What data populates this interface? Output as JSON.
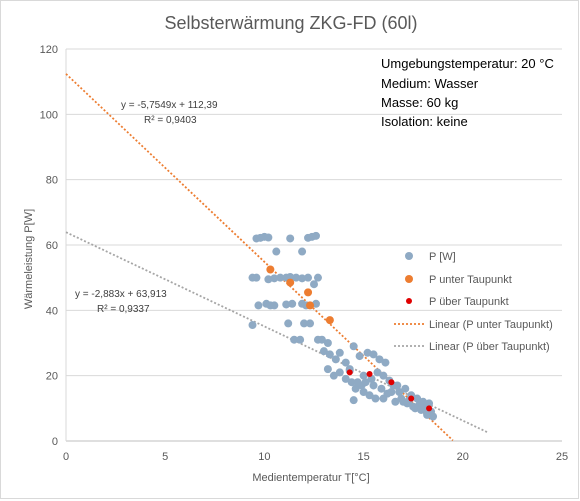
{
  "chart_data": {
    "type": "scatter",
    "title": "Selbsterwärmung ZKG-FD (60l)",
    "xlabel": "Medientemperatur  T[°C]",
    "ylabel": "Wärmeleistung P[W]",
    "xlim": [
      0,
      25
    ],
    "ylim": [
      0,
      120
    ],
    "xticks": [
      "0",
      "5",
      "10",
      "15",
      "20",
      "25"
    ],
    "yticks": [
      "0",
      "20",
      "40",
      "60",
      "80",
      "100",
      "120"
    ],
    "grid": "horizontal",
    "legend_position": "right",
    "info_box": [
      "Umgebungstemperatur: 20 °C",
      "Medium: Wasser",
      "Masse: 60 kg",
      "Isolation: keine"
    ],
    "series": [
      {
        "name": "P [W]",
        "color": "#8faac4",
        "points": [
          [
            9.6,
            62
          ],
          [
            9.8,
            62.2
          ],
          [
            10.0,
            62.5
          ],
          [
            10.2,
            62.3
          ],
          [
            10.6,
            58
          ],
          [
            11.3,
            62
          ],
          [
            11.9,
            58
          ],
          [
            12.2,
            62.2
          ],
          [
            12.4,
            62.5
          ],
          [
            12.6,
            62.8
          ],
          [
            9.4,
            50
          ],
          [
            9.6,
            50
          ],
          [
            10.2,
            49.5
          ],
          [
            10.5,
            49.8
          ],
          [
            10.8,
            50
          ],
          [
            11.1,
            50
          ],
          [
            11.3,
            50.2
          ],
          [
            11.6,
            50
          ],
          [
            11.9,
            49.8
          ],
          [
            12.2,
            50
          ],
          [
            12.5,
            48
          ],
          [
            12.7,
            50
          ],
          [
            9.7,
            41.5
          ],
          [
            10.1,
            42
          ],
          [
            10.3,
            41.5
          ],
          [
            10.5,
            41.5
          ],
          [
            11.1,
            41.8
          ],
          [
            11.4,
            42
          ],
          [
            11.9,
            42
          ],
          [
            12.1,
            41.5
          ],
          [
            12.6,
            42
          ],
          [
            9.4,
            35.5
          ],
          [
            11.2,
            36
          ],
          [
            11.5,
            31
          ],
          [
            11.8,
            31
          ],
          [
            12.0,
            36
          ],
          [
            12.3,
            36
          ],
          [
            12.7,
            31
          ],
          [
            12.9,
            31
          ],
          [
            13.2,
            30
          ],
          [
            13.0,
            27.5
          ],
          [
            13.3,
            26.5
          ],
          [
            13.6,
            25
          ],
          [
            13.8,
            27
          ],
          [
            14.1,
            24
          ],
          [
            14.3,
            22
          ],
          [
            14.5,
            29
          ],
          [
            14.8,
            26
          ],
          [
            15.2,
            27
          ],
          [
            15.5,
            26.5
          ],
          [
            15.8,
            25
          ],
          [
            16.1,
            24
          ],
          [
            13.2,
            22
          ],
          [
            13.5,
            20
          ],
          [
            13.8,
            21
          ],
          [
            14.1,
            19
          ],
          [
            14.4,
            18
          ],
          [
            14.6,
            16
          ],
          [
            14.9,
            17
          ],
          [
            15.1,
            18
          ],
          [
            15.4,
            19
          ],
          [
            15.7,
            21
          ],
          [
            16.0,
            20
          ],
          [
            16.3,
            18.5
          ],
          [
            16.5,
            17
          ],
          [
            16.8,
            15
          ],
          [
            17.1,
            16
          ],
          [
            17.4,
            14
          ],
          [
            17.7,
            13
          ],
          [
            18.0,
            12
          ],
          [
            18.3,
            11.5
          ],
          [
            14.3,
            21.5
          ],
          [
            14.7,
            18
          ],
          [
            15.0,
            15
          ],
          [
            15.3,
            14
          ],
          [
            15.6,
            13
          ],
          [
            15.9,
            16
          ],
          [
            16.2,
            14.5
          ],
          [
            16.6,
            12
          ],
          [
            16.9,
            13
          ],
          [
            17.2,
            11.5
          ],
          [
            17.5,
            10.5
          ],
          [
            17.8,
            11
          ],
          [
            18.1,
            10
          ],
          [
            18.4,
            9
          ],
          [
            14.5,
            12.5
          ],
          [
            15.0,
            20
          ],
          [
            15.5,
            17
          ],
          [
            16.0,
            13
          ],
          [
            16.4,
            15
          ],
          [
            16.7,
            17
          ],
          [
            17.0,
            12
          ],
          [
            17.3,
            12.5
          ],
          [
            17.6,
            10
          ],
          [
            18.2,
            8
          ],
          [
            18.5,
            7.5
          ],
          [
            17.9,
            9.5
          ]
        ]
      },
      {
        "name": "P unter Taupunkt",
        "color": "#ed7d31",
        "points": [
          [
            10.3,
            52.5
          ],
          [
            11.3,
            48.5
          ],
          [
            12.2,
            45.5
          ],
          [
            12.3,
            41.5
          ],
          [
            13.3,
            37
          ]
        ]
      },
      {
        "name": "P über Taupunkt",
        "color": "#e00000",
        "points": [
          [
            14.3,
            21
          ],
          [
            15.3,
            20.5
          ],
          [
            16.4,
            18
          ],
          [
            17.4,
            13
          ],
          [
            18.3,
            10
          ]
        ]
      }
    ],
    "trendlines": [
      {
        "name": "Linear (P unter Taupunkt)",
        "color": "#ed7d31",
        "slope": -5.7549,
        "intercept": 112.39,
        "x_range": [
          0,
          19.5
        ],
        "equation": "y = -5,7549x + 112,39",
        "r2": "R² = 0,9403"
      },
      {
        "name": "Linear (P über Taupunkt)",
        "color": "#a6a6a6",
        "slope": -2.883,
        "intercept": 63.913,
        "x_range": [
          0,
          21.3
        ],
        "equation": "y = -2,883x + 63,913",
        "r2": "R² = 0,9337"
      }
    ]
  }
}
